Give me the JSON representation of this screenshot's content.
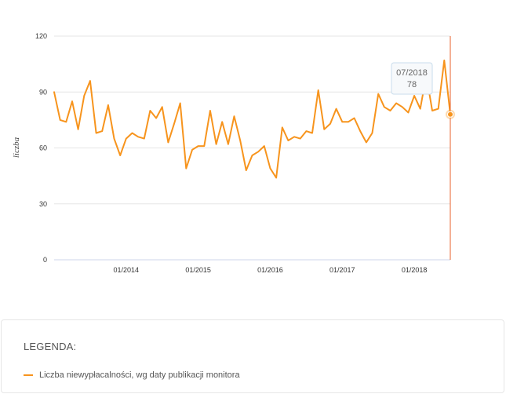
{
  "colors": {
    "series": "#f7941d",
    "cursor": "#e8612c",
    "grid": "#e6e6e6",
    "axis": "#ccd6eb"
  },
  "chart_data": {
    "type": "line",
    "ylabel": "liczba",
    "ylim": [
      0,
      120
    ],
    "yticks": [
      0,
      30,
      60,
      90,
      120
    ],
    "xlim": [
      "2013-01",
      "2018-07"
    ],
    "xticks": [
      {
        "date": "2014-01",
        "label": "01/2014"
      },
      {
        "date": "2015-01",
        "label": "01/2015"
      },
      {
        "date": "2016-01",
        "label": "01/2016"
      },
      {
        "date": "2017-01",
        "label": "01/2017"
      },
      {
        "date": "2018-01",
        "label": "01/2018"
      }
    ],
    "grid": true,
    "series": [
      {
        "name": "Liczba niewypłacalności, wg daty publikacji monitora",
        "x": [
          "2013-01",
          "2013-02",
          "2013-03",
          "2013-04",
          "2013-05",
          "2013-06",
          "2013-07",
          "2013-08",
          "2013-09",
          "2013-10",
          "2013-11",
          "2013-12",
          "2014-01",
          "2014-02",
          "2014-03",
          "2014-04",
          "2014-05",
          "2014-06",
          "2014-07",
          "2014-08",
          "2014-09",
          "2014-10",
          "2014-11",
          "2014-12",
          "2015-01",
          "2015-02",
          "2015-03",
          "2015-04",
          "2015-05",
          "2015-06",
          "2015-07",
          "2015-08",
          "2015-09",
          "2015-10",
          "2015-11",
          "2015-12",
          "2016-01",
          "2016-02",
          "2016-03",
          "2016-04",
          "2016-05",
          "2016-06",
          "2016-07",
          "2016-08",
          "2016-09",
          "2016-10",
          "2016-11",
          "2016-12",
          "2017-01",
          "2017-02",
          "2017-03",
          "2017-04",
          "2017-05",
          "2017-06",
          "2017-07",
          "2017-08",
          "2017-09",
          "2017-10",
          "2017-11",
          "2017-12",
          "2018-01",
          "2018-02",
          "2018-03",
          "2018-04",
          "2018-05",
          "2018-06",
          "2018-07"
        ],
        "values": [
          90,
          75,
          74,
          85,
          70,
          88,
          96,
          68,
          69,
          83,
          65,
          56,
          65,
          68,
          66,
          65,
          80,
          76,
          82,
          63,
          73,
          84,
          49,
          59,
          61,
          61,
          80,
          62,
          74,
          62,
          77,
          64,
          48,
          56,
          58,
          61,
          49,
          44,
          71,
          64,
          66,
          65,
          69,
          68,
          91,
          70,
          73,
          81,
          74,
          74,
          76,
          69,
          63,
          68,
          89,
          82,
          80,
          84,
          82,
          79,
          88,
          81,
          99,
          80,
          81,
          107,
          78
        ]
      }
    ],
    "tooltip": {
      "date": "07/2018",
      "value": "78"
    }
  },
  "legend": {
    "title": "LEGENDA:",
    "items": [
      {
        "label": "Liczba niewypłacalności, wg daty publikacji monitora"
      }
    ]
  }
}
